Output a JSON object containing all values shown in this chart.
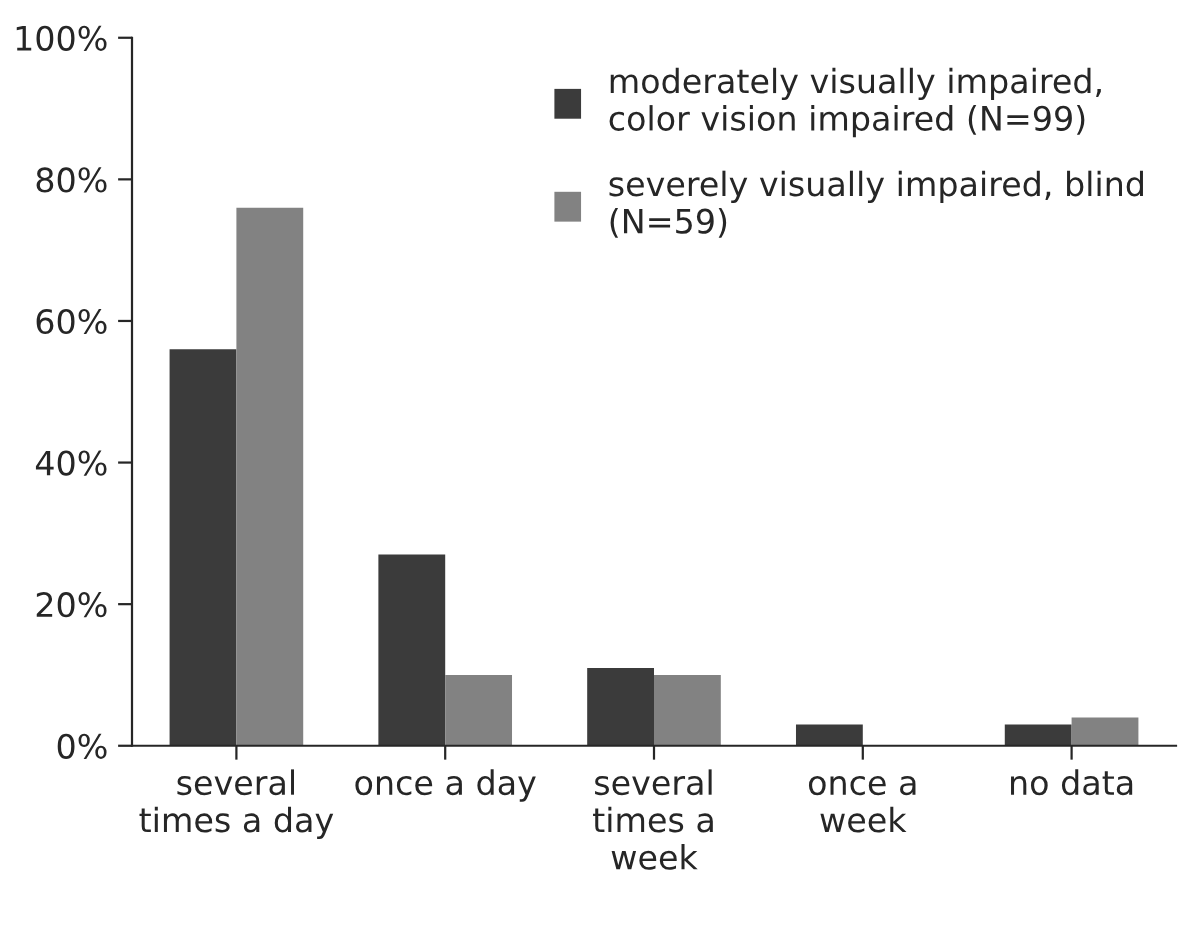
{
  "chart_data": {
    "type": "bar",
    "categories": [
      "several\ntimes a day",
      "once a day",
      "several\ntimes a\nweek",
      "once a\nweek",
      "no data"
    ],
    "series": [
      {
        "name": "moderately visually impaired,\ncolor vision impaired (N=99)",
        "color": "#3b3b3b",
        "values": [
          56,
          27,
          11,
          3,
          3
        ]
      },
      {
        "name": "severely visually impaired, blind\n(N=59)",
        "color": "#828282",
        "values": [
          76,
          10,
          10,
          0,
          4
        ]
      }
    ],
    "ylim": [
      0,
      100
    ],
    "yticks": [
      {
        "value": 0,
        "label": "0%"
      },
      {
        "value": 20,
        "label": "20%"
      },
      {
        "value": 40,
        "label": "40%"
      },
      {
        "value": 60,
        "label": "60%"
      },
      {
        "value": 80,
        "label": "80%"
      },
      {
        "value": 100,
        "label": "100%"
      }
    ],
    "grid": false,
    "legend": "top right"
  }
}
